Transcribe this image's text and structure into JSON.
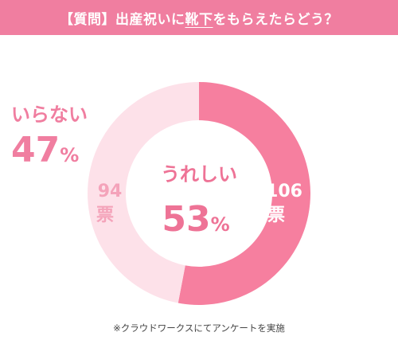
{
  "header": {
    "question_tag": "【質問】",
    "q_before": "出産祝いに",
    "q_highlight": "靴下",
    "q_after": "をもらえたらどう？"
  },
  "chart_data": {
    "type": "pie",
    "title": "【質問】出産祝いに靴下をもらえたらどう？",
    "categories": [
      "うれしい",
      "いらない"
    ],
    "values": [
      106,
      94
    ],
    "percents": [
      53,
      47
    ],
    "count_unit": "票",
    "percent_unit": "%",
    "colors": [
      "#f67f9f",
      "#fde1e9"
    ],
    "center_label": "うれしい",
    "center_value": "53",
    "outside_label": "いらない",
    "outside_value": "47"
  },
  "colors": {
    "accent": "#f07ea0",
    "center_text": "#ee7396",
    "inner_text": "#f4a3ba",
    "white": "#ffffff"
  },
  "footnote": "※クラウドワークスにてアンケートを実施"
}
